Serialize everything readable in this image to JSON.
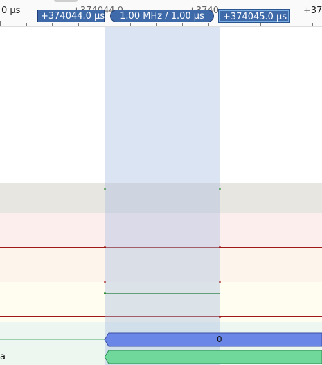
{
  "ruler": {
    "left_label": "0 µs",
    "mid_label_1": "+374044.0",
    "mid_label_2": "+3740",
    "right_label": "+37"
  },
  "cursors": {
    "left_flag": "+374044.0 µs",
    "center_pill": "1.00 MHz / 1.00 µs",
    "right_flag": "+374045.0 µs"
  },
  "decoder": {
    "bus_value": "0"
  },
  "channels": {
    "last_label_fragment": "a"
  },
  "colors": {
    "selection": "#dbe4f2",
    "marker": "#3e6aaa",
    "trace_green": "#2e8b2e",
    "trace_red": "#a01818",
    "bus_blue": "#6a86e6",
    "bus_green": "#6fd89a"
  }
}
